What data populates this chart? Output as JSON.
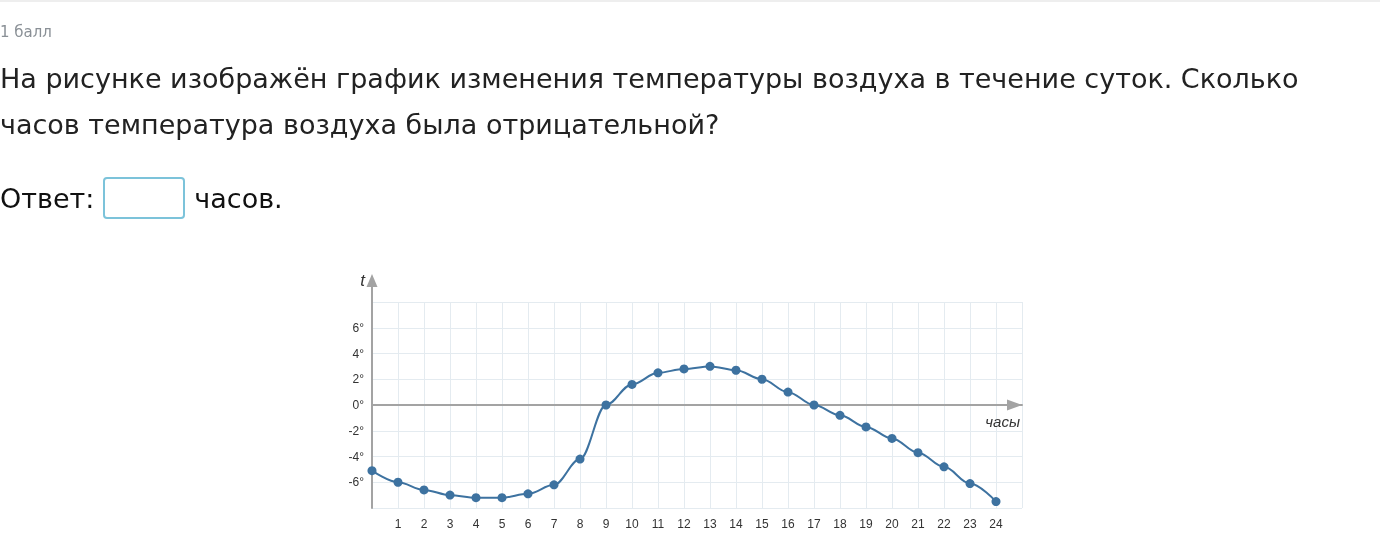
{
  "chart_data": {
    "type": "line",
    "title": "На рисунке изображён график изменения температуры воздуха в течение суток. Сколько часов температура воздуха была отрицательной?",
    "annotations": [
      "1 балл",
      "Ответ:",
      "часов."
    ],
    "xlabel": "часы",
    "ylabel": "t",
    "x": [
      0,
      1,
      2,
      3,
      4,
      5,
      6,
      7,
      8,
      9,
      10,
      11,
      12,
      13,
      14,
      15,
      16,
      17,
      18,
      19,
      20,
      21,
      22,
      23,
      24
    ],
    "values": [
      -5.1,
      -6,
      -6.6,
      -7,
      -7.2,
      -7.2,
      -6.9,
      -6.2,
      -4.2,
      0,
      1.6,
      2.5,
      2.8,
      3,
      2.7,
      2,
      1,
      0,
      -0.8,
      -1.7,
      -2.6,
      -3.7,
      -4.8,
      -6.1,
      -7.5
    ],
    "color": "#3d72a0",
    "marker": "circle",
    "line_style": "solid",
    "grid": true,
    "xlim": [
      0,
      25
    ],
    "ylim": [
      -8,
      8
    ],
    "xticks": [
      {
        "value": 0,
        "label": null
      },
      1,
      2,
      3,
      4,
      5,
      6,
      7,
      8,
      9,
      10,
      11,
      12,
      13,
      14,
      15,
      16,
      17,
      18,
      19,
      20,
      21,
      22,
      23,
      24,
      {
        "value": 25,
        "label": null
      }
    ],
    "yticks": [
      {
        "value": -8,
        "label": null
      },
      {
        "value": -6,
        "label": "-6°"
      },
      {
        "value": -4,
        "label": "-4°"
      },
      {
        "value": -2,
        "label": "-2°"
      },
      {
        "value": 0,
        "label": "0°"
      },
      {
        "value": 2,
        "label": "2°"
      },
      {
        "value": 4,
        "label": "4°"
      },
      {
        "value": 6,
        "label": "6°"
      },
      {
        "value": 8,
        "label": null
      }
    ]
  }
}
